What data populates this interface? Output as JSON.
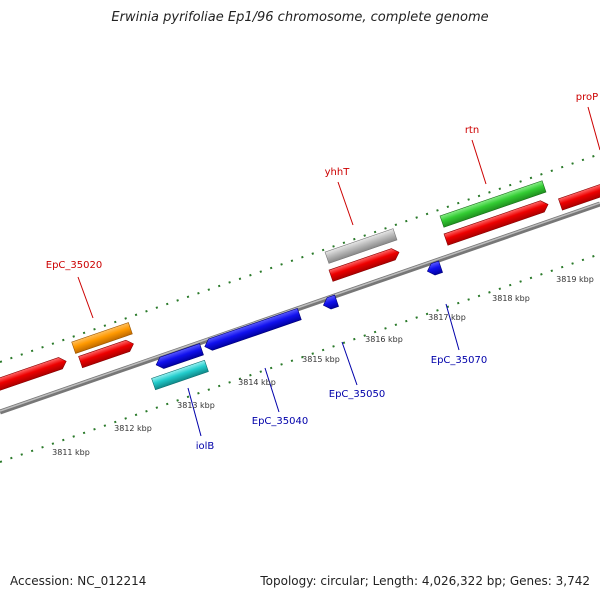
{
  "title": "Erwinia pyrifoliae Ep1/96 chromosome, complete genome",
  "footer": {
    "accession": "Accession: NC_012214",
    "summary": "Topology: circular; Length: 4,026,322 bp; Genes: 3,742"
  },
  "colors": {
    "label_forward": "#cc0000",
    "label_reverse": "#0000aa",
    "backbone": "#888888",
    "tick_dots": "#2a7a2a"
  },
  "ticks": [
    "3811 kbp",
    "3812 kbp",
    "3813 kbp",
    "3814 kbp",
    "3815 kbp",
    "3816 kbp",
    "3817 kbp",
    "3818 kbp",
    "3819 kbp"
  ],
  "gene_labels": {
    "g1": "EpC_35020",
    "g2": "yhhT",
    "g3": "rtn",
    "g4": "proP",
    "g5": "iolB",
    "g6": "EpC_35040",
    "g7": "EpC_35050",
    "g8": "EpC_35070"
  }
}
